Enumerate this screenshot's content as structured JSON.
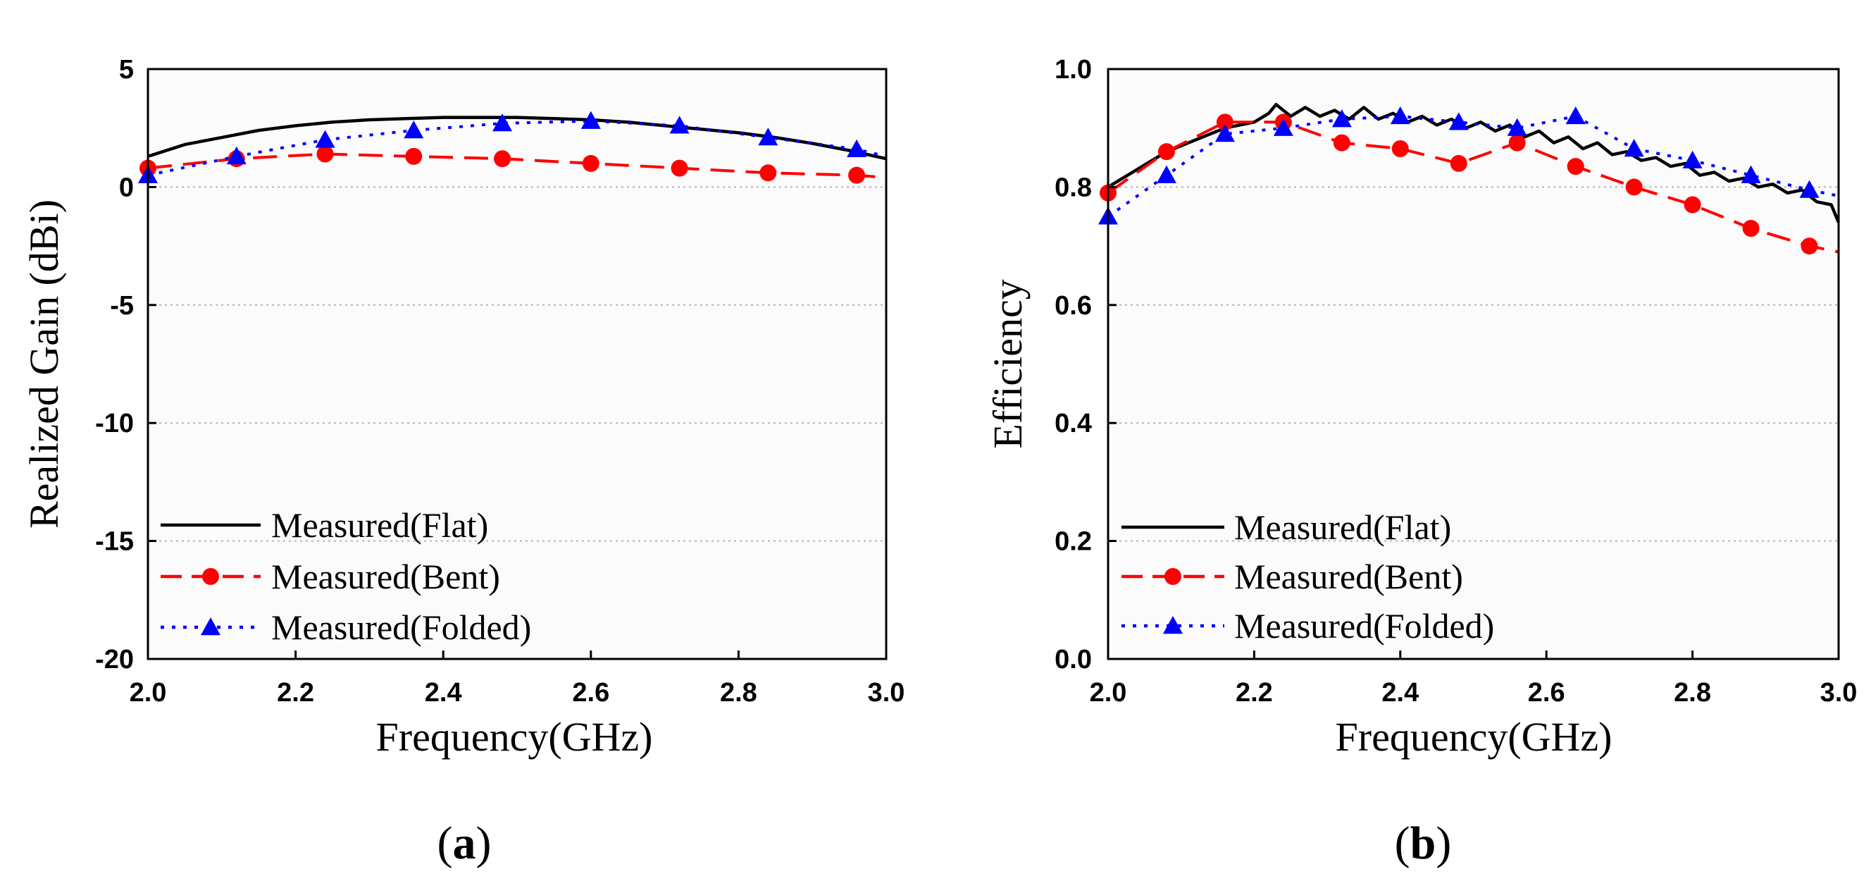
{
  "chart_data": [
    {
      "type": "line",
      "panel_label": "a",
      "xlabel": "Frequency(GHz)",
      "ylabel": "Realized Gain (dBi)",
      "xlim": [
        2.0,
        3.0
      ],
      "ylim": [
        -20,
        5
      ],
      "xticks": [
        2.0,
        2.2,
        2.4,
        2.6,
        2.8,
        3.0
      ],
      "xtick_labels": [
        "2.0",
        "2.2",
        "2.4",
        "2.6",
        "2.8",
        "3.0"
      ],
      "yticks": [
        -20,
        -15,
        -10,
        -5,
        0,
        5
      ],
      "ytick_labels": [
        "-20",
        "-15",
        "-10",
        "-5",
        "0",
        "5"
      ],
      "grid": "horizontal dotted",
      "legend_position": "bottom-left",
      "series": [
        {
          "name": "Measured(Flat)",
          "color": "#000000",
          "line_style": "solid",
          "marker": "none",
          "x": [
            2.0,
            2.05,
            2.1,
            2.15,
            2.2,
            2.25,
            2.3,
            2.35,
            2.4,
            2.45,
            2.5,
            2.55,
            2.6,
            2.65,
            2.7,
            2.75,
            2.8,
            2.85,
            2.9,
            2.95,
            3.0
          ],
          "y": [
            1.3,
            1.8,
            2.1,
            2.4,
            2.6,
            2.75,
            2.85,
            2.9,
            2.95,
            2.95,
            2.95,
            2.9,
            2.85,
            2.75,
            2.6,
            2.45,
            2.3,
            2.1,
            1.85,
            1.55,
            1.2
          ]
        },
        {
          "name": "Measured(Bent)",
          "color": "#ff0000",
          "line_style": "dashed",
          "marker": "circle",
          "x": [
            2.0,
            2.12,
            2.24,
            2.36,
            2.48,
            2.6,
            2.72,
            2.84,
            2.96,
            3.0
          ],
          "y": [
            0.8,
            1.2,
            1.4,
            1.3,
            1.2,
            1.0,
            0.8,
            0.6,
            0.5,
            0.4
          ]
        },
        {
          "name": "Measured(Folded)",
          "color": "#0000ff",
          "line_style": "dotted",
          "marker": "triangle",
          "x": [
            2.0,
            2.12,
            2.24,
            2.36,
            2.48,
            2.6,
            2.72,
            2.84,
            2.96,
            3.0
          ],
          "y": [
            0.5,
            1.3,
            2.0,
            2.4,
            2.7,
            2.8,
            2.6,
            2.1,
            1.6,
            1.3
          ]
        }
      ]
    },
    {
      "type": "line",
      "panel_label": "b",
      "xlabel": "Frequency(GHz)",
      "ylabel": "Efficiency",
      "xlim": [
        2.0,
        3.0
      ],
      "ylim": [
        0.0,
        1.0
      ],
      "xticks": [
        2.0,
        2.2,
        2.4,
        2.6,
        2.8,
        3.0
      ],
      "xtick_labels": [
        "2.0",
        "2.2",
        "2.4",
        "2.6",
        "2.8",
        "3.0"
      ],
      "yticks": [
        0.0,
        0.2,
        0.4,
        0.6,
        0.8,
        1.0
      ],
      "ytick_labels": [
        "0.0",
        "0.2",
        "0.4",
        "0.6",
        "0.8",
        "1.0"
      ],
      "grid": "horizontal dotted",
      "legend_position": "bottom-left",
      "series": [
        {
          "name": "Measured(Flat)",
          "color": "#000000",
          "line_style": "solid",
          "marker": "none",
          "x": [
            2.0,
            2.04,
            2.08,
            2.12,
            2.16,
            2.2,
            2.22,
            2.23,
            2.25,
            2.27,
            2.29,
            2.31,
            2.33,
            2.35,
            2.37,
            2.39,
            2.41,
            2.43,
            2.45,
            2.47,
            2.49,
            2.51,
            2.53,
            2.55,
            2.57,
            2.59,
            2.61,
            2.63,
            2.65,
            2.67,
            2.69,
            2.71,
            2.73,
            2.75,
            2.77,
            2.79,
            2.81,
            2.83,
            2.85,
            2.87,
            2.89,
            2.91,
            2.93,
            2.95,
            2.97,
            2.99,
            3.0
          ],
          "y": [
            0.8,
            0.83,
            0.86,
            0.88,
            0.9,
            0.91,
            0.925,
            0.94,
            0.92,
            0.935,
            0.92,
            0.93,
            0.915,
            0.935,
            0.915,
            0.925,
            0.91,
            0.92,
            0.905,
            0.915,
            0.9,
            0.91,
            0.895,
            0.905,
            0.885,
            0.895,
            0.875,
            0.885,
            0.865,
            0.875,
            0.855,
            0.86,
            0.845,
            0.85,
            0.835,
            0.84,
            0.82,
            0.825,
            0.81,
            0.815,
            0.8,
            0.805,
            0.79,
            0.795,
            0.775,
            0.77,
            0.74
          ]
        },
        {
          "name": "Measured(Bent)",
          "color": "#ff0000",
          "line_style": "dashed",
          "marker": "circle",
          "x": [
            2.0,
            2.08,
            2.16,
            2.24,
            2.32,
            2.4,
            2.48,
            2.56,
            2.64,
            2.72,
            2.8,
            2.88,
            2.96,
            3.0
          ],
          "y": [
            0.79,
            0.86,
            0.91,
            0.91,
            0.875,
            0.865,
            0.84,
            0.875,
            0.835,
            0.8,
            0.77,
            0.73,
            0.7,
            0.69
          ]
        },
        {
          "name": "Measured(Folded)",
          "color": "#0000ff",
          "line_style": "dotted",
          "marker": "triangle",
          "x": [
            2.0,
            2.08,
            2.16,
            2.24,
            2.32,
            2.4,
            2.48,
            2.56,
            2.64,
            2.72,
            2.8,
            2.88,
            2.96,
            3.0
          ],
          "y": [
            0.75,
            0.82,
            0.89,
            0.9,
            0.915,
            0.92,
            0.91,
            0.9,
            0.92,
            0.865,
            0.845,
            0.82,
            0.795,
            0.785
          ]
        }
      ]
    }
  ]
}
